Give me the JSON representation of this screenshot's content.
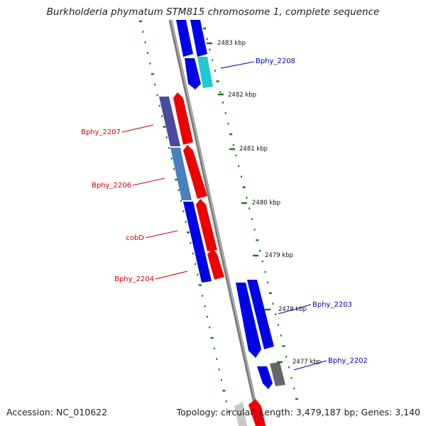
{
  "title": "Burkholderia phymatum STM815 chromosome 1, complete sequence",
  "accession_text": "Accession: NC_010622",
  "summary_text": "Topology: circular; Length: 3,479,187 bp; Genes: 3,140",
  "colors": {
    "backbone": "#888888",
    "tick": "#1a7a1a",
    "forward_label": "#cc0000",
    "reverse_label": "#0000aa"
  },
  "ruler_labels": [
    "2483 kbp",
    "2482 kbp",
    "2481 kbp",
    "2480 kbp",
    "2479 kbp",
    "2478 kbp",
    "2477 kbp"
  ],
  "gene_labels": [
    {
      "text": "Bphy_2208",
      "color": "#0000aa"
    },
    {
      "text": "Bphy_2207",
      "color": "#cc0000"
    },
    {
      "text": "Bphy_2206",
      "color": "#cc0000"
    },
    {
      "text": "cobD",
      "color": "#cc0000"
    },
    {
      "text": "Bphy_2204",
      "color": "#cc0000"
    },
    {
      "text": "Bphy_2203",
      "color": "#0000aa"
    },
    {
      "text": "Bphy_2202",
      "color": "#0000aa"
    }
  ]
}
